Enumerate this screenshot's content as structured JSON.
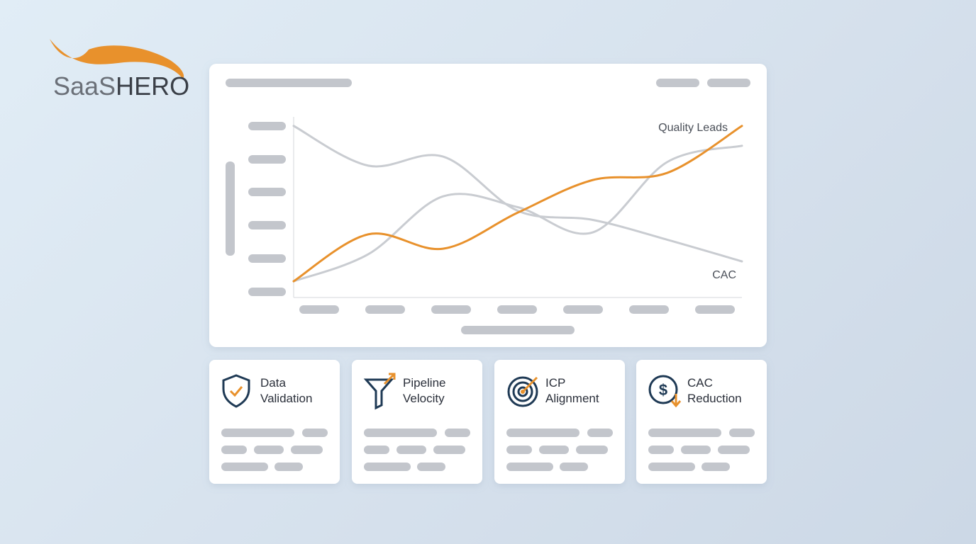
{
  "logo": {
    "part1": "SaaS",
    "part2": "HERO"
  },
  "chart_data": {
    "type": "line",
    "categories": [
      null,
      null,
      null,
      null,
      null,
      null,
      null
    ],
    "ylim": [
      0,
      100
    ],
    "series": [
      {
        "name": "Quality Leads",
        "color": "#e8912c",
        "values": [
          9,
          35,
          27,
          47,
          65,
          69,
          95
        ]
      },
      {
        "name": "CAC",
        "color": "#c9ccd1",
        "values": [
          95,
          73,
          78,
          48,
          43,
          32,
          20
        ]
      },
      {
        "color": "#c9ccd1",
        "values": [
          9,
          24,
          56,
          50,
          36,
          75,
          84
        ]
      }
    ]
  },
  "cards": [
    {
      "title": [
        "Data",
        "Validation"
      ]
    },
    {
      "title": [
        "Pipeline",
        "Velocity"
      ]
    },
    {
      "title": [
        "ICP",
        "Alignment"
      ]
    },
    {
      "title": [
        "CAC",
        "Reduction"
      ]
    }
  ]
}
